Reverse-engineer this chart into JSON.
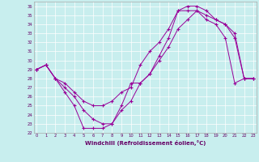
{
  "xlabel": "Windchill (Refroidissement éolien,°C)",
  "ylabel": "",
  "bg_color": "#c8eeee",
  "line_color": "#990099",
  "grid_color": "#ffffff",
  "xmin": 0,
  "xmax": 23,
  "ymin": 22,
  "ymax": 36,
  "series": [
    [
      29.0,
      29.5,
      28.0,
      27.5,
      26.5,
      25.5,
      25.0,
      25.0,
      25.5,
      26.5,
      27.0,
      29.5,
      31.0,
      32.0,
      33.5,
      35.5,
      36.0,
      36.0,
      35.5,
      34.5,
      34.0,
      33.0,
      28.0,
      28.0
    ],
    [
      29.0,
      29.5,
      28.0,
      27.0,
      26.0,
      24.5,
      23.5,
      23.0,
      23.0,
      24.5,
      25.5,
      27.5,
      28.5,
      30.0,
      31.5,
      33.5,
      34.5,
      35.5,
      35.0,
      34.5,
      34.0,
      32.5,
      28.0,
      28.0
    ],
    [
      29.0,
      29.5,
      28.0,
      26.5,
      25.0,
      22.5,
      22.5,
      22.5,
      23.0,
      25.0,
      27.5,
      27.5,
      28.5,
      30.5,
      32.5,
      35.5,
      35.5,
      35.5,
      34.5,
      34.0,
      32.5,
      27.5,
      28.0,
      28.0
    ]
  ]
}
